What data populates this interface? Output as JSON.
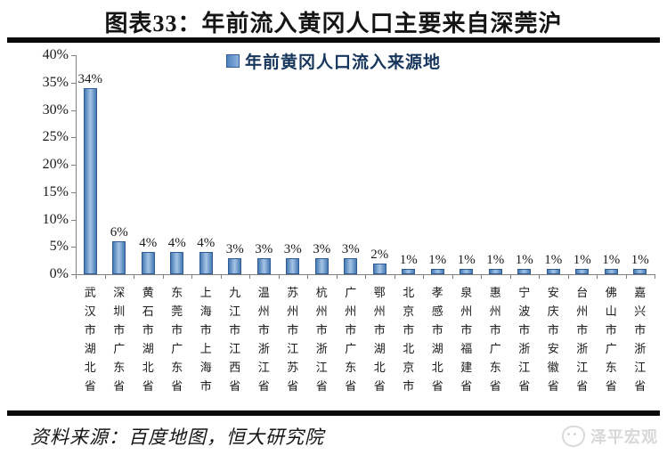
{
  "title": "图表33：年前流入黄冈人口主要来自深莞沪",
  "legend": {
    "label": "年前黄冈人口流入来源地"
  },
  "chart_data": {
    "type": "bar",
    "title": "年前黄冈人口流入来源地",
    "categories": [
      "武汉市湖北省",
      "深圳市广东省",
      "黄石市湖北省",
      "东莞市广东省",
      "上海市上海市",
      "九江市江西省",
      "温州市浙江省",
      "苏州市江苏省",
      "杭州市浙江省",
      "广州市广东省",
      "鄂州市湖北省",
      "北京市北京市",
      "孝感市湖北省",
      "泉州市福建省",
      "惠州市广东省",
      "宁波市浙江省",
      "安庆市安徽省",
      "台州市浙江省",
      "佛山市广东省",
      "嘉兴市浙江省"
    ],
    "values": [
      34,
      6,
      4,
      4,
      4,
      3,
      3,
      3,
      3,
      3,
      2,
      1,
      1,
      1,
      1,
      1,
      1,
      1,
      1,
      1
    ],
    "data_labels": [
      "34%",
      "6%",
      "4%",
      "4%",
      "4%",
      "3%",
      "3%",
      "3%",
      "3%",
      "3%",
      "2%",
      "1%",
      "1%",
      "1%",
      "1%",
      "1%",
      "1%",
      "1%",
      "1%",
      "1%"
    ],
    "yticks": [
      "40%",
      "35%",
      "30%",
      "25%",
      "20%",
      "15%",
      "10%",
      "5%",
      "0%"
    ],
    "ylim": [
      0,
      40
    ],
    "xlabel": "",
    "ylabel": "",
    "grid": false,
    "legend_position": "top-center",
    "colors": {
      "bar_fill": "#4f81bd",
      "bar_edge": "#2e5b94",
      "axis": "#808080",
      "legend_text": "#17365d"
    }
  },
  "footer": {
    "source": "资料来源：百度地图，恒大研究院",
    "logo_text": "泽平宏观"
  }
}
